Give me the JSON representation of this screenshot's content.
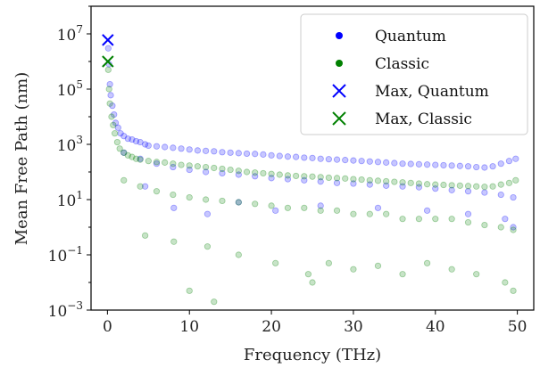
{
  "chart_data": {
    "type": "scatter",
    "xlabel": "Frequency (THz)",
    "ylabel": "Mean Free Path (nm)",
    "xlim": [
      -2,
      52
    ],
    "ylim": [
      0.001,
      100000000
    ],
    "yscale": "log",
    "grid": false,
    "legend_placement": "top-right",
    "x_ticks": [
      0,
      10,
      20,
      30,
      40,
      50
    ],
    "x_tick_labels": [
      "0",
      "10",
      "20",
      "30",
      "40",
      "50"
    ],
    "y_ticks": [
      0.001,
      0.1,
      10,
      1000,
      100000,
      10000000
    ],
    "y_tick_labels": [
      {
        "base": "10",
        "exp": "−3"
      },
      {
        "base": "10",
        "exp": "−1"
      },
      {
        "base": "10",
        "exp": "1"
      },
      {
        "base": "10",
        "exp": "3"
      },
      {
        "base": "10",
        "exp": "5"
      },
      {
        "base": "10",
        "exp": "7"
      }
    ],
    "series": [
      {
        "name": "Quantum",
        "color": "#0000ff",
        "marker": "dot",
        "points": [
          [
            0.1,
            3000000
          ],
          [
            0.2,
            800000
          ],
          [
            0.3,
            150000
          ],
          [
            0.4,
            60000
          ],
          [
            0.6,
            25000
          ],
          [
            0.8,
            12000
          ],
          [
            1.0,
            6000
          ],
          [
            1.3,
            4000
          ],
          [
            1.6,
            2500
          ],
          [
            2.0,
            2000
          ],
          [
            2.5,
            1600
          ],
          [
            3.0,
            1500
          ],
          [
            3.5,
            1300
          ],
          [
            4.0,
            1200
          ],
          [
            4.6,
            1000
          ],
          [
            5.0,
            900
          ],
          [
            6.0,
            850
          ],
          [
            7.0,
            800
          ],
          [
            8.0,
            750
          ],
          [
            9.0,
            700
          ],
          [
            10.0,
            650
          ],
          [
            11.0,
            600
          ],
          [
            12.0,
            580
          ],
          [
            13.0,
            560
          ],
          [
            14.0,
            520
          ],
          [
            15.0,
            500
          ],
          [
            16.0,
            480
          ],
          [
            17.0,
            460
          ],
          [
            18.0,
            450
          ],
          [
            19.0,
            430
          ],
          [
            20.0,
            400
          ],
          [
            21.0,
            380
          ],
          [
            22.0,
            360
          ],
          [
            23.0,
            350
          ],
          [
            24.0,
            330
          ],
          [
            25.0,
            320
          ],
          [
            26.0,
            300
          ],
          [
            27.0,
            290
          ],
          [
            28.0,
            280
          ],
          [
            29.0,
            270
          ],
          [
            30.0,
            260
          ],
          [
            31.0,
            250
          ],
          [
            32.0,
            240
          ],
          [
            33.0,
            230
          ],
          [
            34.0,
            220
          ],
          [
            35.0,
            210
          ],
          [
            36.0,
            200
          ],
          [
            37.0,
            195
          ],
          [
            38.0,
            190
          ],
          [
            39.0,
            185
          ],
          [
            40.0,
            180
          ],
          [
            41.0,
            175
          ],
          [
            42.0,
            170
          ],
          [
            43.0,
            165
          ],
          [
            44.0,
            160
          ],
          [
            45.0,
            150
          ],
          [
            46.0,
            145
          ],
          [
            47.0,
            160
          ],
          [
            48.0,
            200
          ],
          [
            49.0,
            250
          ],
          [
            49.8,
            300
          ],
          [
            2.0,
            500
          ],
          [
            4.0,
            300
          ],
          [
            6.0,
            200
          ],
          [
            8.0,
            150
          ],
          [
            10.0,
            120
          ],
          [
            12.0,
            100
          ],
          [
            14.0,
            90
          ],
          [
            16.0,
            80
          ],
          [
            18.0,
            70
          ],
          [
            20.0,
            60
          ],
          [
            22.0,
            55
          ],
          [
            24.0,
            50
          ],
          [
            26.0,
            45
          ],
          [
            28.0,
            40
          ],
          [
            30.0,
            38
          ],
          [
            32.0,
            35
          ],
          [
            34.0,
            32
          ],
          [
            36.0,
            30
          ],
          [
            38.0,
            28
          ],
          [
            40.0,
            25
          ],
          [
            42.0,
            22
          ],
          [
            44.0,
            20
          ],
          [
            46.0,
            18
          ],
          [
            48.0,
            15
          ],
          [
            49.5,
            12
          ],
          [
            4.6,
            30
          ],
          [
            8.1,
            5
          ],
          [
            12.2,
            3
          ],
          [
            16.0,
            8
          ],
          [
            20.5,
            4
          ],
          [
            26.0,
            6
          ],
          [
            33.0,
            5
          ],
          [
            39.0,
            4
          ],
          [
            44.0,
            3
          ],
          [
            48.5,
            2
          ],
          [
            49.5,
            1
          ]
        ]
      },
      {
        "name": "Classic",
        "color": "#008000",
        "marker": "dot",
        "points": [
          [
            0.1,
            500000
          ],
          [
            0.2,
            100000
          ],
          [
            0.3,
            30000
          ],
          [
            0.5,
            10000
          ],
          [
            0.7,
            5000
          ],
          [
            0.9,
            2500
          ],
          [
            1.2,
            1200
          ],
          [
            1.5,
            700
          ],
          [
            2.0,
            500
          ],
          [
            2.5,
            400
          ],
          [
            3.0,
            350
          ],
          [
            3.5,
            300
          ],
          [
            4.0,
            280
          ],
          [
            5.0,
            250
          ],
          [
            6.0,
            230
          ],
          [
            7.0,
            220
          ],
          [
            8.0,
            200
          ],
          [
            9.0,
            180
          ],
          [
            10.0,
            170
          ],
          [
            11.0,
            160
          ],
          [
            12.0,
            150
          ],
          [
            13.0,
            140
          ],
          [
            14.0,
            130
          ],
          [
            15.0,
            120
          ],
          [
            16.0,
            110
          ],
          [
            17.0,
            100
          ],
          [
            18.0,
            95
          ],
          [
            19.0,
            90
          ],
          [
            20.0,
            85
          ],
          [
            21.0,
            80
          ],
          [
            22.0,
            75
          ],
          [
            23.0,
            72
          ],
          [
            24.0,
            70
          ],
          [
            25.0,
            68
          ],
          [
            26.0,
            65
          ],
          [
            27.0,
            62
          ],
          [
            28.0,
            60
          ],
          [
            29.0,
            58
          ],
          [
            30.0,
            55
          ],
          [
            31.0,
            53
          ],
          [
            32.0,
            50
          ],
          [
            33.0,
            48
          ],
          [
            34.0,
            46
          ],
          [
            35.0,
            44
          ],
          [
            36.0,
            42
          ],
          [
            37.0,
            40
          ],
          [
            38.0,
            38
          ],
          [
            39.0,
            36
          ],
          [
            40.0,
            35
          ],
          [
            41.0,
            34
          ],
          [
            42.0,
            33
          ],
          [
            43.0,
            32
          ],
          [
            44.0,
            31
          ],
          [
            45.0,
            30
          ],
          [
            46.0,
            29
          ],
          [
            47.0,
            30
          ],
          [
            48.0,
            35
          ],
          [
            49.0,
            40
          ],
          [
            49.8,
            50
          ],
          [
            2.0,
            50
          ],
          [
            4.0,
            30
          ],
          [
            6.0,
            20
          ],
          [
            8.0,
            15
          ],
          [
            10.0,
            12
          ],
          [
            12.0,
            10
          ],
          [
            14.0,
            9
          ],
          [
            16.0,
            8
          ],
          [
            18.0,
            7
          ],
          [
            20.0,
            6
          ],
          [
            22.0,
            5
          ],
          [
            24.0,
            5
          ],
          [
            26.0,
            4
          ],
          [
            28.0,
            4
          ],
          [
            30.0,
            3
          ],
          [
            32.0,
            3
          ],
          [
            34.0,
            3
          ],
          [
            36.0,
            2
          ],
          [
            38.0,
            2
          ],
          [
            40.0,
            2
          ],
          [
            42.0,
            2
          ],
          [
            44.0,
            1.5
          ],
          [
            46.0,
            1.2
          ],
          [
            48.0,
            1
          ],
          [
            49.5,
            0.8
          ],
          [
            4.6,
            0.5
          ],
          [
            8.1,
            0.3
          ],
          [
            12.2,
            0.2
          ],
          [
            16.0,
            0.1
          ],
          [
            20.5,
            0.05
          ],
          [
            24.5,
            0.02
          ],
          [
            27.0,
            0.05
          ],
          [
            30.0,
            0.03
          ],
          [
            33.0,
            0.04
          ],
          [
            36.0,
            0.02
          ],
          [
            39.0,
            0.05
          ],
          [
            42.0,
            0.03
          ],
          [
            45.0,
            0.02
          ],
          [
            48.5,
            0.01
          ],
          [
            49.5,
            0.005
          ],
          [
            13.0,
            0.002
          ],
          [
            25.0,
            0.01
          ],
          [
            10.0,
            0.005
          ]
        ]
      },
      {
        "name": "Max, Quantum",
        "color": "#0000ff",
        "marker": "x",
        "points": [
          [
            0.05,
            6000000
          ]
        ]
      },
      {
        "name": "Max, Classic",
        "color": "#008000",
        "marker": "x",
        "points": [
          [
            0.05,
            1000000
          ]
        ]
      }
    ]
  }
}
